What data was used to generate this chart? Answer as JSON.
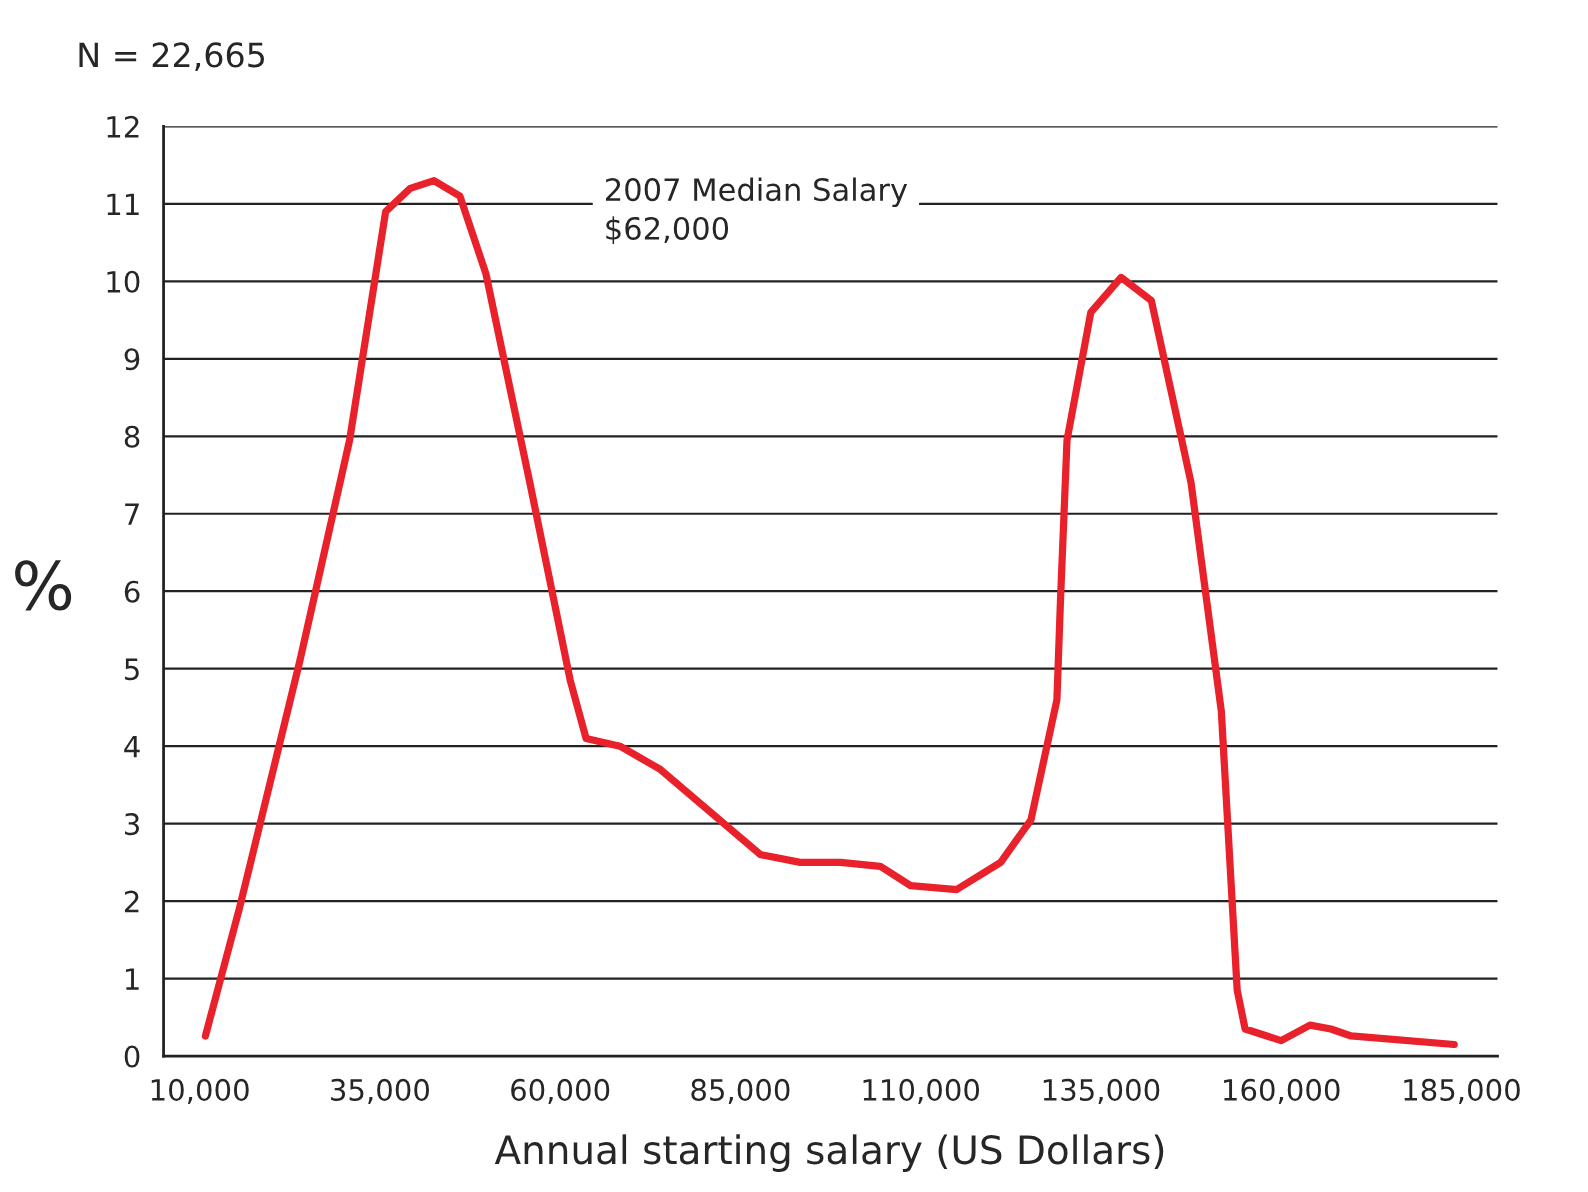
{
  "chart_data": {
    "type": "line",
    "xlabel": "Annual starting salary (US Dollars)",
    "ylabel": "%",
    "annotations": [
      "N = 22,665",
      "2007 Median Salary\n$62,000"
    ],
    "series": [
      {
        "color": "#e8212b",
        "x": [
          10800,
          15500,
          23900,
          30800,
          35800,
          39200,
          42500,
          46100,
          49700,
          55800,
          61400,
          63600,
          68300,
          73900,
          87800,
          93300,
          98900,
          104400,
          108600,
          115000,
          121100,
          125300,
          128900,
          129400,
          130300,
          133600,
          137800,
          142000,
          147500,
          151700,
          153900,
          155000,
          160000,
          164000,
          166900,
          169700,
          184000
        ],
        "values": [
          0.26,
          1.9,
          5.1,
          7.95,
          10.9,
          11.2,
          11.3,
          11.1,
          10.1,
          7.4,
          4.85,
          4.1,
          4.0,
          3.7,
          2.6,
          2.5,
          2.5,
          2.45,
          2.2,
          2.15,
          2.5,
          3.05,
          4.6,
          5.9,
          7.95,
          9.6,
          10.05,
          9.75,
          7.4,
          4.45,
          0.85,
          0.35,
          0.2,
          0.4,
          0.35,
          0.26,
          0.15
        ]
      }
    ],
    "xlim": [
      5000,
      190000
    ],
    "xticks": [
      {
        "value": 10000,
        "label": "10,000"
      },
      {
        "value": 35000,
        "label": "35,000"
      },
      {
        "value": 60000,
        "label": "60,000"
      },
      {
        "value": 85000,
        "label": "85,000"
      },
      {
        "value": 110000,
        "label": "110,000"
      },
      {
        "value": 135000,
        "label": "135,000"
      },
      {
        "value": 160000,
        "label": "160,000"
      },
      {
        "value": 185000,
        "label": "185,000"
      }
    ],
    "ylim": [
      0,
      12
    ],
    "yticks": [
      0,
      1,
      2,
      3,
      4,
      5,
      6,
      7,
      8,
      9,
      10,
      11,
      12
    ],
    "grid": "y",
    "legend": false,
    "marker": "none",
    "line_style": "solid"
  }
}
